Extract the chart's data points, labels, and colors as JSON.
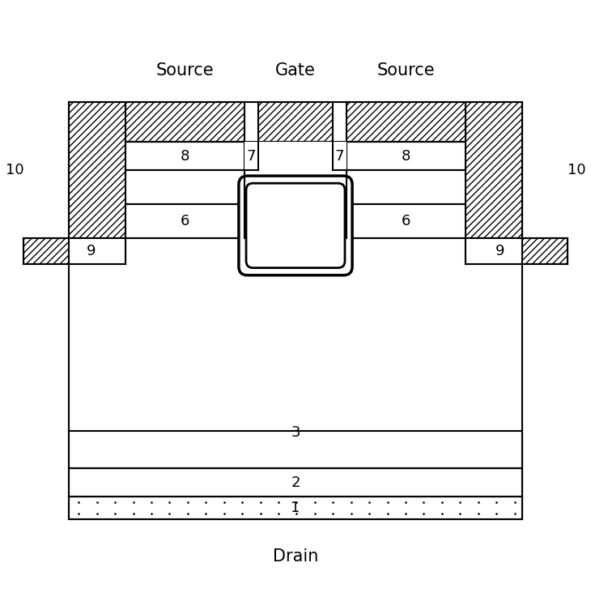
{
  "title_labels": {
    "source_left": "Source",
    "gate": "Gate",
    "source_right": "Source",
    "drain": "Drain"
  },
  "bg_color": "white",
  "line_color": "black",
  "font_size_labels": 13,
  "font_size_title": 15,
  "lw": 1.5
}
